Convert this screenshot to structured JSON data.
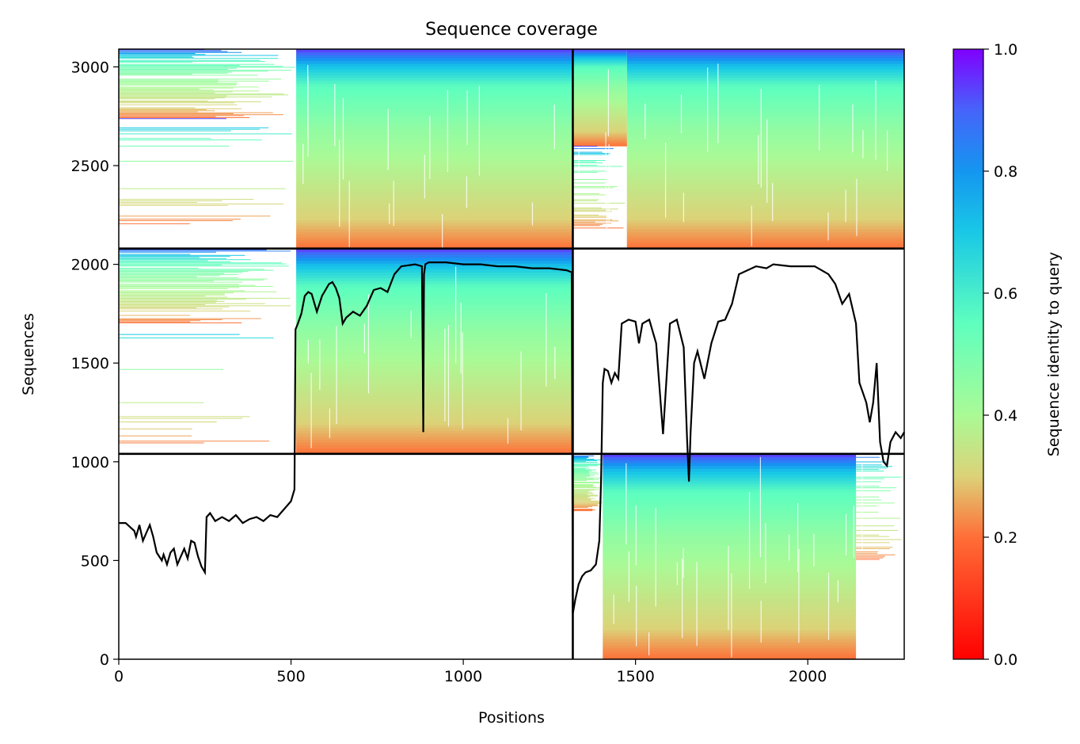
{
  "chart_data": {
    "type": "heatmap",
    "title": "Sequence coverage",
    "xlabel": "Positions",
    "ylabel": "Sequences",
    "xlim": [
      0,
      2280
    ],
    "ylim": [
      0,
      3090
    ],
    "xticks": [
      0,
      500,
      1000,
      1500,
      2000
    ],
    "yticks": [
      0,
      500,
      1000,
      1500,
      2000,
      2500,
      3000
    ],
    "grid": false,
    "legend": "none",
    "colorbar": {
      "label": "Sequence identity to query",
      "colormap": "rainbow",
      "range": [
        0,
        1
      ],
      "ticks": [
        0.0,
        0.2,
        0.4,
        0.6,
        0.8,
        1.0
      ],
      "tick_labels": [
        "0.0",
        "0.2",
        "0.4",
        "0.6",
        "0.8",
        "1.0"
      ]
    },
    "divider_lines": {
      "vertical_x": [
        1318
      ],
      "horizontal_y": [
        1040,
        2080
      ]
    },
    "coverage_blocks": [
      {
        "block": "rows 0-1040 / domain A",
        "x": [
          0,
          1318
        ],
        "y": [
          0,
          1040
        ],
        "coverage": "empty"
      },
      {
        "block": "rows 0-1040 / domain B",
        "x": [
          1318,
          2280
        ],
        "y": [
          0,
          1040
        ],
        "coverage": "dense from x≈1405, sparse 1318-1405"
      },
      {
        "block": "rows 1040-2080 / domain A",
        "x": [
          0,
          1318
        ],
        "y": [
          1040,
          2080
        ],
        "coverage": "sparse x<515, dense x>515"
      },
      {
        "block": "rows 1040-2080 / domain B",
        "x": [
          1318,
          2280
        ],
        "y": [
          1040,
          2080
        ],
        "coverage": "empty"
      },
      {
        "block": "rows 2080-3090 / domain A",
        "x": [
          0,
          1318
        ],
        "y": [
          2080,
          3090
        ],
        "coverage": "sparse x<515, dense x>515"
      },
      {
        "block": "rows 2080-3090 / domain B",
        "x": [
          1318,
          2280
        ],
        "y": [
          2080,
          3090
        ],
        "coverage": "dense"
      }
    ],
    "identity_gradient": [
      {
        "frac": 0.0,
        "identity": 0.2
      },
      {
        "frac": 0.15,
        "identity": 0.3
      },
      {
        "frac": 0.4,
        "identity": 0.38
      },
      {
        "frac": 0.6,
        "identity": 0.45
      },
      {
        "frac": 0.82,
        "identity": 0.56
      },
      {
        "frac": 0.92,
        "identity": 0.72
      },
      {
        "frac": 1.0,
        "identity": 0.95
      }
    ],
    "series": [
      {
        "type": "line",
        "color": "#000000",
        "x": [
          0,
          20,
          45,
          50,
          60,
          70,
          80,
          90,
          100,
          110,
          125,
          130,
          140,
          150,
          160,
          170,
          180,
          190,
          200,
          210,
          220,
          230,
          240,
          250,
          255,
          265,
          280,
          300,
          320,
          340,
          360,
          380,
          400,
          420,
          440,
          460,
          480,
          500,
          510,
          513,
          520,
          530,
          540,
          550,
          560,
          575,
          590,
          600,
          610,
          620,
          630,
          640,
          650,
          660,
          680,
          700,
          720,
          740,
          760,
          780,
          800,
          820,
          860,
          880,
          884,
          886,
          890,
          900,
          950,
          1000,
          1050,
          1100,
          1150,
          1200,
          1250,
          1300,
          1315,
          1318,
          1325,
          1335,
          1345,
          1355,
          1370,
          1385,
          1395,
          1400,
          1405,
          1410,
          1420,
          1430,
          1440,
          1450,
          1460,
          1480,
          1500,
          1510,
          1520,
          1540,
          1560,
          1580,
          1600,
          1620,
          1640,
          1650,
          1655,
          1660,
          1670,
          1680,
          1700,
          1720,
          1740,
          1760,
          1780,
          1800,
          1850,
          1880,
          1900,
          1950,
          2000,
          2020,
          2040,
          2060,
          2080,
          2100,
          2120,
          2140,
          2150,
          2160,
          2170,
          2180,
          2190,
          2200,
          2210,
          2220,
          2230,
          2240,
          2255,
          2270,
          2280
        ],
        "y": [
          690,
          690,
          650,
          620,
          680,
          600,
          640,
          680,
          620,
          540,
          500,
          530,
          480,
          540,
          560,
          480,
          520,
          560,
          510,
          600,
          590,
          520,
          470,
          440,
          720,
          740,
          700,
          720,
          700,
          730,
          690,
          710,
          720,
          700,
          730,
          720,
          760,
          800,
          860,
          1670,
          1700,
          1750,
          1840,
          1860,
          1850,
          1760,
          1840,
          1870,
          1900,
          1910,
          1880,
          1830,
          1700,
          1730,
          1760,
          1740,
          1790,
          1870,
          1880,
          1860,
          1950,
          1990,
          2000,
          1990,
          1150,
          1950,
          2000,
          2010,
          2010,
          2000,
          2000,
          1990,
          1990,
          1980,
          1980,
          1970,
          1960,
          230,
          300,
          380,
          420,
          440,
          450,
          480,
          600,
          900,
          1400,
          1470,
          1460,
          1400,
          1450,
          1420,
          1700,
          1720,
          1710,
          1600,
          1700,
          1720,
          1600,
          1140,
          1700,
          1720,
          1580,
          1100,
          900,
          1150,
          1500,
          1560,
          1420,
          1600,
          1710,
          1720,
          1800,
          1950,
          1990,
          1980,
          2000,
          1990,
          1990,
          1990,
          1970,
          1950,
          1900,
          1800,
          1850,
          1700,
          1400,
          1350,
          1300,
          1200,
          1300,
          1500,
          1100,
          1000,
          980,
          1100,
          1150,
          1120,
          1150
        ]
      }
    ]
  }
}
